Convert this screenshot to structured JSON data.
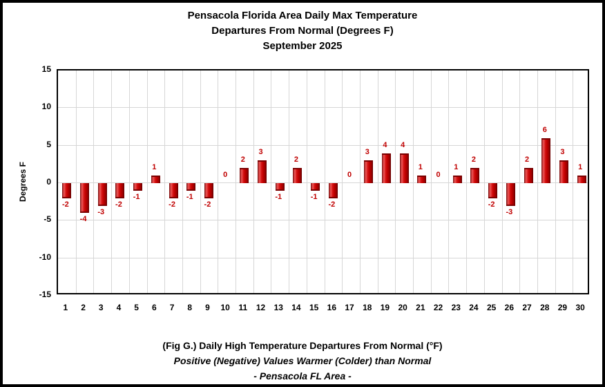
{
  "title": {
    "line1": "Pensacola Florida Area Daily Max Temperature",
    "line2": "Departures From Normal (Degrees F)",
    "line3": "September 2025"
  },
  "chart_data": {
    "type": "bar",
    "title": "Pensacola Florida Area Daily Max Temperature Departures From Normal (Degrees F) September 2025",
    "categories": [
      1,
      2,
      3,
      4,
      5,
      6,
      7,
      8,
      9,
      10,
      11,
      12,
      13,
      14,
      15,
      16,
      17,
      18,
      19,
      20,
      21,
      22,
      23,
      24,
      25,
      26,
      27,
      28,
      29,
      30
    ],
    "values": [
      -2,
      -4,
      -3,
      -2,
      -1,
      1,
      -2,
      -1,
      -2,
      0,
      2,
      3,
      -1,
      2,
      -1,
      -2,
      0,
      3,
      4,
      4,
      1,
      0,
      1,
      2,
      -2,
      -3,
      2,
      6,
      3,
      1
    ],
    "xlabel": "",
    "ylabel": "Degrees F",
    "ylim": [
      -15,
      15
    ],
    "yticks": [
      15,
      10,
      5,
      0,
      -5,
      -10,
      -15
    ],
    "grid": true,
    "data_labels": true,
    "legend": "none",
    "colors": {
      "bar_main": "#c00000",
      "bar_highlight": "#ee5555",
      "bar_dark": "#5f0000",
      "data_label": "#c00000",
      "gridline": "#d6d6d6",
      "axis": "#000000",
      "background": "#ffffff"
    }
  },
  "caption": {
    "line1": "(Fig G.) Daily High Temperature Departures From Normal (°F)",
    "line2": "Positive (Negative) Values Warmer (Colder) than Normal",
    "line3": "- Pensacola FL Area -"
  }
}
